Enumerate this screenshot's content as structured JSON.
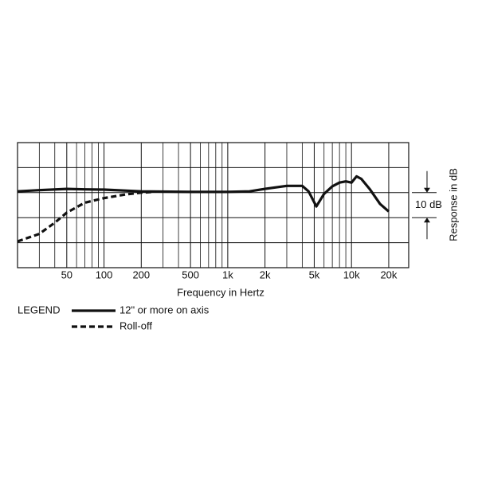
{
  "chart_data": {
    "type": "line",
    "x_label": "Frequency in Hertz",
    "y_label": "Response in dB",
    "log_x": true,
    "xlim": [
      20,
      29000
    ],
    "xticks": [
      50,
      100,
      200,
      500,
      {
        "value": 1000,
        "label": "1k"
      },
      {
        "value": 2000,
        "label": "2k"
      },
      {
        "value": 5000,
        "label": "5k"
      },
      {
        "value": 10000,
        "label": "10k"
      },
      {
        "value": 20000,
        "label": "20k"
      }
    ],
    "x_minor_ticks": [
      30,
      40,
      60,
      70,
      80,
      90,
      300,
      400,
      600,
      700,
      800,
      900,
      3000,
      4000,
      6000,
      7000,
      8000,
      9000
    ],
    "ylim": [
      -30,
      20
    ],
    "yticks": [
      -30,
      -20,
      -10,
      0,
      10,
      20
    ],
    "grid": true,
    "scale_bar": {
      "label": "10 dB",
      "from": -10,
      "to": 0
    },
    "legend_title": "LEGEND",
    "series": [
      {
        "name": "12\" or more on axis",
        "color": "#111111",
        "dash": false,
        "x": [
          20,
          30,
          50,
          70,
          100,
          200,
          500,
          1000,
          1500,
          2000,
          3000,
          4000,
          4500,
          5200,
          6000,
          7000,
          8000,
          9000,
          10000,
          11000,
          12000,
          14000,
          17000,
          20000
        ],
        "values": [
          0.5,
          1,
          1.5,
          1.3,
          1.2,
          0.5,
          0.3,
          0.3,
          0.5,
          1.5,
          2.7,
          2.7,
          0.5,
          -5.5,
          -0.5,
          2.5,
          4,
          4.5,
          4,
          6.5,
          5.5,
          1.5,
          -4.5,
          -7.5
        ]
      },
      {
        "name": "Roll-off",
        "color": "#111111",
        "dash": true,
        "x": [
          20,
          30,
          40,
          50,
          70,
          100,
          150,
          200,
          250
        ],
        "values": [
          -19.5,
          -16.5,
          -12,
          -8,
          -4,
          -2.2,
          -0.7,
          0,
          0.3
        ]
      }
    ]
  }
}
